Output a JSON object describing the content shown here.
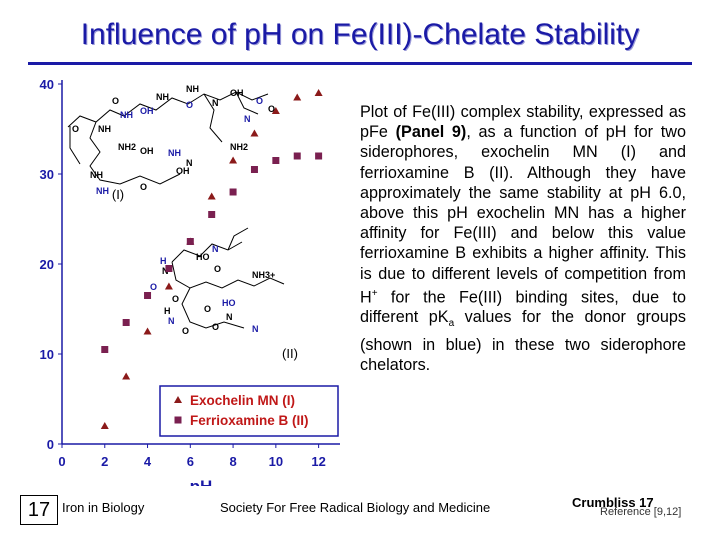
{
  "slide": {
    "title": "Influence of pH on Fe(III)-Chelate Stability",
    "description": {
      "p1": "Plot of Fe(III) complex stability, expressed as pFe ",
      "panel": "(Panel 9)",
      "p2": ", as a function of pH for two siderophores, exochelin MN (I) and ferrioxamine B (II). Although they have approximately the same stability at pH 6.0, above this pH exochelin MN has a higher affinity for Fe(III) and below this value ferrioxamine B exhibits a higher affinity. This is due to different levels of competition from H",
      "sup_plus": "+",
      "p3": " for the Fe(III) binding sites, due to different pK",
      "sub_a": "a",
      "p4": " values for the donor groups (shown in blue) in these two siderophore chelators."
    },
    "footer": {
      "slide_number": "17",
      "left": "Iron in Biology",
      "center": "Society For Free Radical Biology and Medicine",
      "right": "Crumbliss 17",
      "reference": "Reference [9,12]"
    }
  },
  "chart_data": {
    "type": "scatter",
    "xlabel": "pH",
    "ylabel": "",
    "xlim": [
      0,
      13
    ],
    "ylim": [
      0,
      40
    ],
    "x_ticks": [
      0,
      2,
      4,
      6,
      8,
      10,
      12
    ],
    "y_ticks": [
      0,
      10,
      20,
      30,
      40
    ],
    "legend_position": "bottom-right",
    "annotations": [
      "(I)",
      "(II)"
    ],
    "structure_labels": {
      "I": [
        "NH",
        "NH",
        "O",
        "O",
        "OH",
        "NH",
        "NH",
        "O",
        "N",
        "OH",
        "O",
        "NH2",
        "OH",
        "NH",
        "N",
        "NH",
        "NH",
        "O",
        "OH",
        "N",
        "O",
        "NH2"
      ],
      "II": [
        "H",
        "N",
        "HO",
        "N",
        "O",
        "NH3+",
        "O",
        "O",
        "H",
        "N",
        "O",
        "O",
        "HO",
        "N",
        "O",
        "N"
      ]
    },
    "series": [
      {
        "name": "Exochelin MN (I)",
        "marker": "triangle",
        "color": "#8b1a1a",
        "x": [
          2,
          3,
          4,
          5,
          6,
          7,
          8,
          9,
          10,
          11,
          12
        ],
        "y": [
          2,
          7.5,
          12.5,
          17.5,
          22.5,
          27.5,
          31.5,
          34.5,
          37,
          38.5,
          39
        ]
      },
      {
        "name": "Ferrioxamine B (II)",
        "marker": "square",
        "color": "#7a2050",
        "x": [
          2,
          3,
          4,
          5,
          6,
          7,
          8,
          9,
          10,
          11,
          12
        ],
        "y": [
          10.5,
          13.5,
          16.5,
          19.5,
          22.5,
          25.5,
          28,
          30.5,
          31.5,
          32,
          32
        ]
      }
    ]
  }
}
